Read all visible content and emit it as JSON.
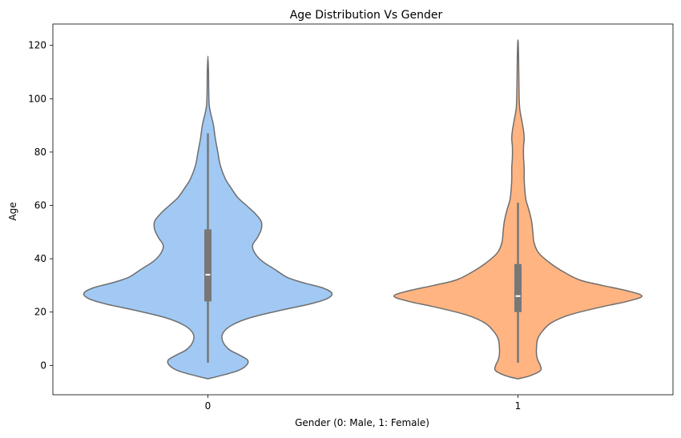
{
  "chart_data": {
    "type": "violin",
    "title": "Age Distribution Vs Gender",
    "xlabel": "Gender (0: Male, 1: Female)",
    "ylabel": "Age",
    "categories": [
      "0",
      "1"
    ],
    "ylim": [
      -11,
      128
    ],
    "yticks": [
      0,
      20,
      40,
      60,
      80,
      100,
      120
    ],
    "grid": false,
    "colors": [
      "#a1c9f4",
      "#ffb482"
    ],
    "edge_color": "#6e6e6e",
    "box_color": "#777777",
    "violins": [
      {
        "category": "0",
        "q1": 24,
        "median": 34,
        "q3": 51,
        "whisker_low": 1,
        "whisker_high": 87,
        "profile": [
          [
            -5,
            0.0
          ],
          [
            -4,
            0.09
          ],
          [
            -2,
            0.24
          ],
          [
            0,
            0.31
          ],
          [
            2,
            0.32
          ],
          [
            4,
            0.25
          ],
          [
            6,
            0.17
          ],
          [
            9,
            0.12
          ],
          [
            12,
            0.12
          ],
          [
            15,
            0.19
          ],
          [
            18,
            0.35
          ],
          [
            21,
            0.62
          ],
          [
            23,
            0.82
          ],
          [
            25,
            0.96
          ],
          [
            27,
            1.0
          ],
          [
            29,
            0.93
          ],
          [
            31,
            0.77
          ],
          [
            33,
            0.64
          ],
          [
            36,
            0.54
          ],
          [
            39,
            0.44
          ],
          [
            42,
            0.38
          ],
          [
            45,
            0.36
          ],
          [
            48,
            0.4
          ],
          [
            51,
            0.43
          ],
          [
            54,
            0.43
          ],
          [
            57,
            0.38
          ],
          [
            60,
            0.31
          ],
          [
            63,
            0.24
          ],
          [
            67,
            0.18
          ],
          [
            70,
            0.14
          ],
          [
            75,
            0.1
          ],
          [
            80,
            0.08
          ],
          [
            85,
            0.06
          ],
          [
            90,
            0.045
          ],
          [
            94,
            0.025
          ],
          [
            97,
            0.012
          ],
          [
            100,
            0.008
          ],
          [
            105,
            0.006
          ],
          [
            110,
            0.005
          ],
          [
            116,
            0.0
          ]
        ]
      },
      {
        "category": "1",
        "q1": 20,
        "median": 26,
        "q3": 38,
        "whisker_low": 1,
        "whisker_high": 61,
        "profile": [
          [
            -5,
            0.0
          ],
          [
            -4,
            0.09
          ],
          [
            -2,
            0.18
          ],
          [
            0,
            0.18
          ],
          [
            2,
            0.16
          ],
          [
            4,
            0.15
          ],
          [
            7,
            0.15
          ],
          [
            10,
            0.16
          ],
          [
            13,
            0.2
          ],
          [
            16,
            0.27
          ],
          [
            19,
            0.42
          ],
          [
            22,
            0.68
          ],
          [
            24,
            0.88
          ],
          [
            26,
            1.0
          ],
          [
            28,
            0.88
          ],
          [
            30,
            0.68
          ],
          [
            32,
            0.5
          ],
          [
            35,
            0.37
          ],
          [
            38,
            0.27
          ],
          [
            42,
            0.17
          ],
          [
            46,
            0.13
          ],
          [
            50,
            0.12
          ],
          [
            54,
            0.11
          ],
          [
            58,
            0.09
          ],
          [
            62,
            0.065
          ],
          [
            66,
            0.055
          ],
          [
            70,
            0.05
          ],
          [
            74,
            0.05
          ],
          [
            78,
            0.045
          ],
          [
            82,
            0.045
          ],
          [
            85,
            0.05
          ],
          [
            88,
            0.045
          ],
          [
            92,
            0.03
          ],
          [
            96,
            0.015
          ],
          [
            100,
            0.01
          ],
          [
            105,
            0.008
          ],
          [
            112,
            0.006
          ],
          [
            118,
            0.004
          ],
          [
            122,
            0.0
          ]
        ]
      }
    ]
  }
}
